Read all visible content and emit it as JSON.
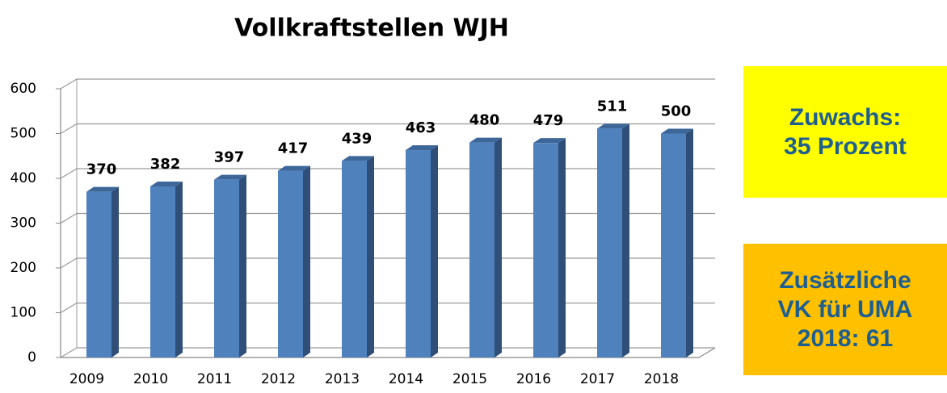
{
  "chart_data": {
    "type": "bar",
    "title": "Vollkraftstellen WJH",
    "categories": [
      "2009",
      "2010",
      "2011",
      "2012",
      "2013",
      "2014",
      "2015",
      "2016",
      "2017",
      "2018"
    ],
    "values": [
      370,
      382,
      397,
      417,
      439,
      463,
      480,
      479,
      511,
      500
    ],
    "color": "#4f81bd",
    "ylim": [
      0,
      600
    ],
    "yticks": [
      0,
      100,
      200,
      300,
      400,
      500,
      600
    ],
    "grid": true,
    "annotations": [
      [
        "Zuwachs:",
        "35 Prozent"
      ],
      [
        "Zusätzliche",
        "VK für UMA",
        "2018: 61"
      ]
    ]
  }
}
